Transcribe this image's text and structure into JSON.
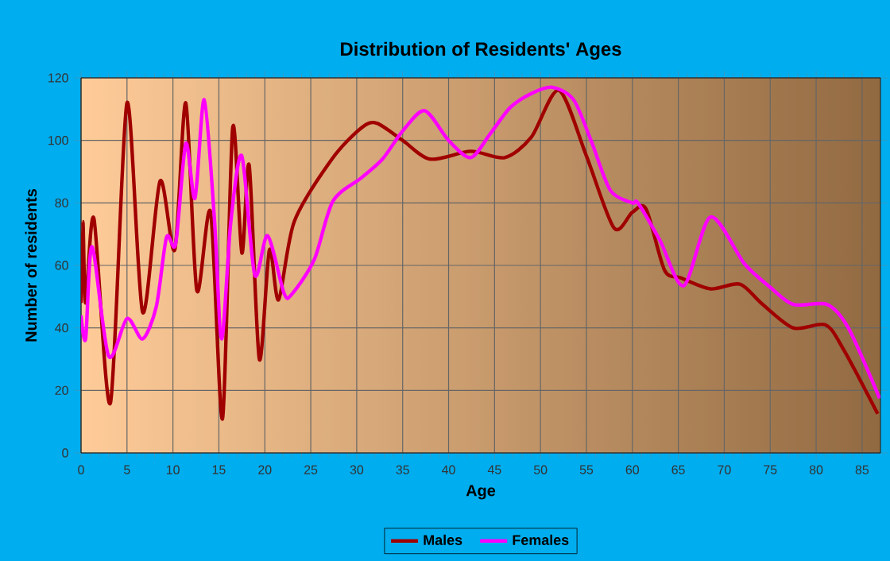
{
  "chart_data": {
    "type": "line",
    "title": "Distribution of Residents' Ages",
    "xlabel": "Age",
    "ylabel": "Number of residents",
    "xlim": [
      0,
      87
    ],
    "ylim": [
      0,
      120
    ],
    "xticks": [
      0,
      5,
      10,
      15,
      20,
      25,
      30,
      35,
      40,
      45,
      50,
      55,
      60,
      65,
      70,
      75,
      80,
      85
    ],
    "yticks": [
      0,
      20,
      40,
      60,
      80,
      100,
      120
    ],
    "grid": true,
    "legend": "bottom",
    "marker": "none",
    "line_style": "solid",
    "series": [
      {
        "name": "Males",
        "color": "#a00000",
        "x": [
          0,
          0.2,
          0.5,
          1.4,
          3.2,
          5,
          6.7,
          8.6,
          10.2,
          11.4,
          12.6,
          14.1,
          15.4,
          16.5,
          17.5,
          18.3,
          19.4,
          20.5,
          21.5,
          23.2,
          27.3,
          30.5,
          32.2,
          35,
          38,
          42.4,
          46.1,
          49,
          52,
          55,
          58,
          60,
          61.5,
          63.5,
          65.3,
          68.5,
          71.7,
          74,
          77.5,
          81,
          83,
          86.7
        ],
        "values": [
          48,
          74,
          48,
          75,
          16,
          112,
          45,
          87,
          65,
          112,
          52,
          77,
          11,
          104,
          64,
          92,
          30,
          65,
          49,
          74,
          94,
          104,
          105.5,
          100,
          94,
          96.5,
          94.5,
          101,
          116,
          95,
          72,
          77,
          78,
          58.5,
          56,
          52.5,
          54,
          48,
          40,
          41,
          33,
          12.5
        ]
      },
      {
        "name": "Females",
        "color": "#ff00ff",
        "x": [
          0,
          0.5,
          1.2,
          3,
          5,
          6.7,
          8.2,
          9.3,
          10.3,
          11.4,
          12.4,
          13.4,
          14.5,
          15.3,
          16.3,
          17.5,
          18.9,
          20.3,
          22.1,
          23,
          25.4,
          27.4,
          30.5,
          32.8,
          35,
          37.4,
          40,
          42.4,
          44.5,
          46.7,
          49,
          51.3,
          53.6,
          55.5,
          57.6,
          60,
          60.6,
          63,
          65.6,
          68.5,
          72.2,
          75,
          77.5,
          81.2,
          83.5,
          86.9
        ],
        "values": [
          44,
          36.5,
          66,
          31,
          43,
          36.5,
          47,
          69,
          67,
          99,
          81.5,
          113,
          75.5,
          36.5,
          74,
          95,
          57,
          69.5,
          51,
          51,
          62,
          80.5,
          88,
          94,
          103,
          109.5,
          100,
          94.5,
          102,
          110.5,
          115,
          117,
          113,
          100,
          84,
          80,
          80,
          68,
          53.5,
          75.5,
          60.5,
          53,
          47.5,
          47.5,
          40,
          17.5
        ]
      }
    ]
  }
}
